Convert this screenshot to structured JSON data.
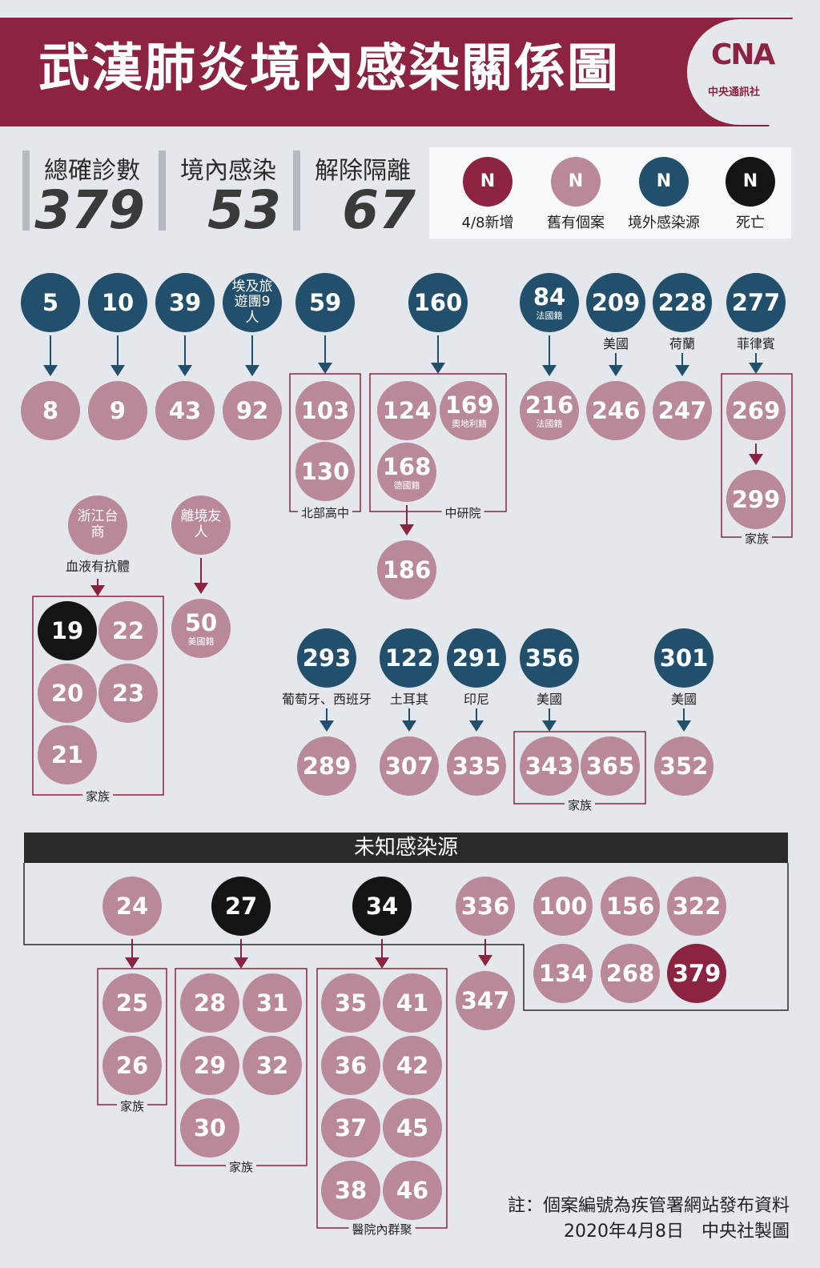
{
  "header": {
    "title": "武漢肺炎境內感染關係圖",
    "logo_mark": "CNA",
    "logo_text": "中央通訊社"
  },
  "stats": [
    {
      "label": "總確診數",
      "value": "379"
    },
    {
      "label": "境內感染",
      "value": "53"
    },
    {
      "label": "解除隔離",
      "value": "67"
    }
  ],
  "legend": [
    {
      "symbol": "N",
      "label": "4/8新增",
      "color": "#8c2340"
    },
    {
      "symbol": "N",
      "label": "舊有個案",
      "color": "#b9899a"
    },
    {
      "symbol": "N",
      "label": "境外感染源",
      "color": "#22506c"
    },
    {
      "symbol": "N",
      "label": "死亡",
      "color": "#141414"
    }
  ],
  "nodes": [
    {
      "id": "5",
      "type": "src"
    },
    {
      "id": "8",
      "type": "old"
    },
    {
      "id": "10",
      "type": "src"
    },
    {
      "id": "9",
      "type": "old"
    },
    {
      "id": "39",
      "type": "src"
    },
    {
      "id": "43",
      "type": "old"
    },
    {
      "id": "tour",
      "type": "src",
      "text": "埃及旅遊團9人"
    },
    {
      "id": "92",
      "type": "old"
    },
    {
      "id": "59",
      "type": "src"
    },
    {
      "id": "103",
      "type": "old"
    },
    {
      "id": "130",
      "type": "old"
    },
    {
      "id": "160",
      "type": "src"
    },
    {
      "id": "124",
      "type": "old"
    },
    {
      "id": "169",
      "type": "old",
      "sub": "奧地利籍"
    },
    {
      "id": "168",
      "type": "old",
      "sub": "德國籍"
    },
    {
      "id": "186",
      "type": "old"
    },
    {
      "id": "84",
      "type": "src",
      "sub": "法國籍"
    },
    {
      "id": "216",
      "type": "old",
      "sub": "法國籍"
    },
    {
      "id": "209",
      "type": "src"
    },
    {
      "id": "246",
      "type": "old"
    },
    {
      "id": "228",
      "type": "src"
    },
    {
      "id": "247",
      "type": "old"
    },
    {
      "id": "277",
      "type": "src"
    },
    {
      "id": "269",
      "type": "old"
    },
    {
      "id": "299",
      "type": "old"
    },
    {
      "id": "zj",
      "type": "old",
      "text": "浙江台商"
    },
    {
      "id": "19",
      "type": "dead"
    },
    {
      "id": "22",
      "type": "old"
    },
    {
      "id": "20",
      "type": "old"
    },
    {
      "id": "23",
      "type": "old"
    },
    {
      "id": "21",
      "type": "old"
    },
    {
      "id": "lj",
      "type": "old",
      "text": "離境友人"
    },
    {
      "id": "50",
      "type": "old",
      "sub": "美國籍"
    },
    {
      "id": "293",
      "type": "src"
    },
    {
      "id": "289",
      "type": "old"
    },
    {
      "id": "122",
      "type": "src"
    },
    {
      "id": "307",
      "type": "old"
    },
    {
      "id": "291",
      "type": "src"
    },
    {
      "id": "335",
      "type": "old"
    },
    {
      "id": "356",
      "type": "src"
    },
    {
      "id": "343",
      "type": "old"
    },
    {
      "id": "365",
      "type": "old"
    },
    {
      "id": "301",
      "type": "src"
    },
    {
      "id": "352",
      "type": "old"
    },
    {
      "id": "24",
      "type": "old"
    },
    {
      "id": "25",
      "type": "old"
    },
    {
      "id": "26",
      "type": "old"
    },
    {
      "id": "27",
      "type": "dead"
    },
    {
      "id": "28",
      "type": "old"
    },
    {
      "id": "31",
      "type": "old"
    },
    {
      "id": "29",
      "type": "old"
    },
    {
      "id": "32",
      "type": "old"
    },
    {
      "id": "30",
      "type": "old"
    },
    {
      "id": "34",
      "type": "dead"
    },
    {
      "id": "35",
      "type": "old"
    },
    {
      "id": "41",
      "type": "old"
    },
    {
      "id": "36",
      "type": "old"
    },
    {
      "id": "42",
      "type": "old"
    },
    {
      "id": "37",
      "type": "old"
    },
    {
      "id": "45",
      "type": "old"
    },
    {
      "id": "38",
      "type": "old"
    },
    {
      "id": "46",
      "type": "old"
    },
    {
      "id": "336",
      "type": "old"
    },
    {
      "id": "347",
      "type": "old"
    },
    {
      "id": "100",
      "type": "old"
    },
    {
      "id": "156",
      "type": "old"
    },
    {
      "id": "322",
      "type": "old"
    },
    {
      "id": "134",
      "type": "old"
    },
    {
      "id": "268",
      "type": "old"
    },
    {
      "id": "379",
      "type": "new"
    }
  ],
  "edges": [
    [
      "5",
      "8"
    ],
    [
      "10",
      "9"
    ],
    [
      "39",
      "43"
    ],
    [
      "tour",
      "92"
    ],
    [
      "59",
      "103"
    ],
    [
      "160",
      "124"
    ],
    [
      "84",
      "216"
    ],
    [
      "209",
      "246"
    ],
    [
      "228",
      "247"
    ],
    [
      "277",
      "269"
    ],
    [
      "269",
      "299"
    ],
    [
      "168",
      "186"
    ],
    [
      "zj",
      "19"
    ],
    [
      "lj",
      "50"
    ],
    [
      "293",
      "289"
    ],
    [
      "122",
      "307"
    ],
    [
      "291",
      "335"
    ],
    [
      "356",
      "343"
    ],
    [
      "301",
      "352"
    ],
    [
      "24",
      "25"
    ],
    [
      "27",
      "28"
    ],
    [
      "34",
      "35"
    ],
    [
      "336",
      "347"
    ]
  ],
  "labels": {
    "l209": "美國",
    "l228": "荷蘭",
    "l277": "菲律賓",
    "zj": "血液有抗體",
    "l293": "葡萄牙、西班牙",
    "l122": "土耳其",
    "l291": "印尼",
    "l356": "美國",
    "l301": "美國"
  },
  "groups": {
    "north_high": "北部高中",
    "academia": "中研院",
    "fam277": "家族",
    "fam19": "家族",
    "fam343": "家族",
    "fam24": "家族",
    "fam27": "家族",
    "hospital": "醫院內群聚"
  },
  "unknown_title": "未知感染源",
  "notes": {
    "note": "註：個案編號為疾管署網站發布資料",
    "credit": "2020年4月8日　中央社製圖"
  }
}
